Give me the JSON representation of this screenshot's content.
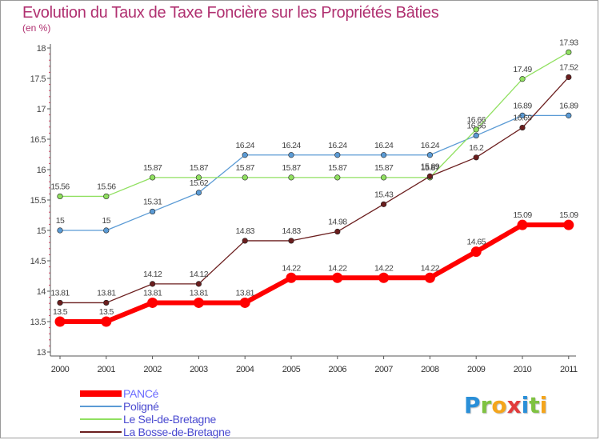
{
  "chart_data": {
    "type": "line",
    "title": "Evolution du Taux de Taxe Foncière sur les Propriétés Bâties",
    "ylabel": "(en %)",
    "xlabel": "",
    "ylim": [
      13,
      18
    ],
    "yticks": [
      "13",
      "13.5",
      "14",
      "14.5",
      "15",
      "15.5",
      "16",
      "16.5",
      "17",
      "17.5",
      "18"
    ],
    "categories": [
      "2000",
      "2001",
      "2002",
      "2003",
      "2004",
      "2005",
      "2006",
      "2007",
      "2008",
      "2009",
      "2010",
      "2011"
    ],
    "series": [
      {
        "name": "PANCé",
        "color": "#ff0000",
        "values": [
          13.5,
          13.5,
          13.81,
          13.81,
          13.81,
          14.22,
          14.22,
          14.22,
          14.22,
          14.65,
          15.09,
          15.09
        ],
        "labels": [
          "13.5",
          "13.5",
          "13.81",
          "13.81",
          "13.81",
          "14.22",
          "14.22",
          "14.22",
          "14.22",
          "14.65",
          "15.09",
          "15.09"
        ]
      },
      {
        "name": "Poligné",
        "color": "#5b9bd5",
        "values": [
          15,
          15,
          15.31,
          15.62,
          16.24,
          16.24,
          16.24,
          16.24,
          16.24,
          16.56,
          16.89,
          16.89
        ],
        "labels": [
          "15",
          "15",
          "15.31",
          "15.62",
          "16.24",
          "16.24",
          "16.24",
          "16.24",
          "16.24",
          "16.56",
          "16.89",
          "16.89"
        ]
      },
      {
        "name": "Le Sel-de-Bretagne",
        "color": "#90e060",
        "values": [
          15.56,
          15.56,
          15.87,
          15.87,
          15.87,
          15.87,
          15.87,
          15.87,
          15.87,
          16.66,
          17.49,
          17.93
        ],
        "labels": [
          "15.56",
          "15.56",
          "15.87",
          "15.87",
          "15.87",
          "15.87",
          "15.87",
          "15.87",
          "15.87",
          "16.66",
          "17.49",
          "17.93"
        ]
      },
      {
        "name": "La Bosse-de-Bretagne",
        "color": "#6b1e1e",
        "values": [
          13.81,
          13.81,
          14.12,
          14.12,
          14.83,
          14.83,
          14.98,
          15.43,
          15.89,
          16.2,
          16.69,
          17.52
        ],
        "labels": [
          "13.81",
          "13.81",
          "14.12",
          "14.12",
          "14.83",
          "14.83",
          "14.98",
          "15.43",
          "15.89",
          "16.2",
          "16.69",
          "17.52"
        ]
      }
    ]
  },
  "legend": {
    "items": [
      {
        "label": "PANCé",
        "color": "#ff0000"
      },
      {
        "label": "Poligné",
        "color": "#5b9bd5"
      },
      {
        "label": "Le Sel-de-Bretagne",
        "color": "#90e060"
      },
      {
        "label": "La Bosse-de-Bretagne",
        "color": "#6b1e1e"
      }
    ]
  },
  "logo": {
    "text": "Proxiti",
    "letters": [
      {
        "ch": "P",
        "color": "#2a8fd8"
      },
      {
        "ch": "r",
        "color": "#7fc241"
      },
      {
        "ch": "o",
        "color": "#f4a51c"
      },
      {
        "ch": "x",
        "color": "#e23b3b"
      },
      {
        "ch": "i",
        "color": "#2a8fd8"
      },
      {
        "ch": "t",
        "color": "#7fc241"
      },
      {
        "ch": "i",
        "color": "#f4a51c"
      }
    ]
  }
}
